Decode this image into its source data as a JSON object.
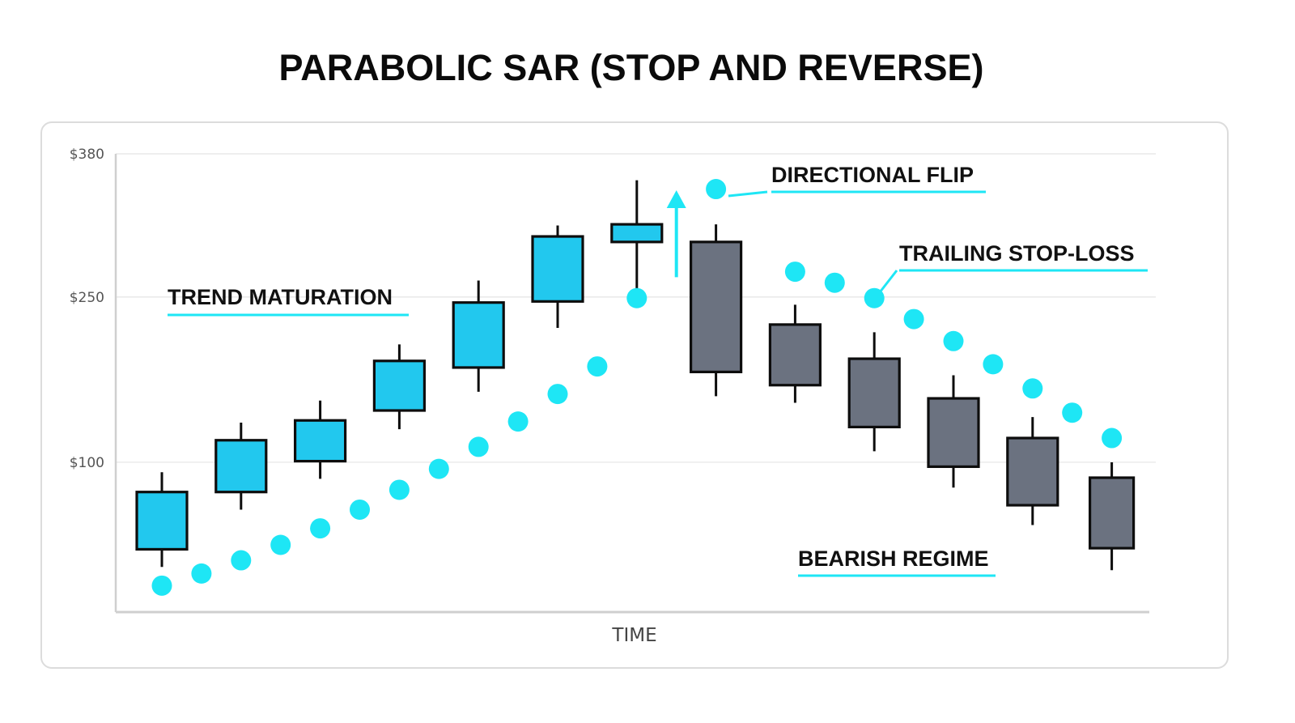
{
  "title": "PARABOLIC SAR (STOP AND REVERSE)",
  "chart_data": {
    "type": "candlestick",
    "title": "PARABOLIC SAR (STOP AND REVERSE)",
    "xlabel": "TIME",
    "ylabel": "",
    "ylim": [
      -36,
      380
    ],
    "yticks": [
      {
        "value": 100,
        "label": "$100"
      },
      {
        "value": 250,
        "label": "$250"
      },
      {
        "value": 380,
        "label": "$380"
      }
    ],
    "grid": true,
    "candles": [
      {
        "open": 21,
        "close": 73,
        "high": 91,
        "low": 5,
        "trend": "up"
      },
      {
        "open": 73,
        "close": 120,
        "high": 136,
        "low": 57,
        "trend": "up"
      },
      {
        "open": 101,
        "close": 138,
        "high": 156,
        "low": 85,
        "trend": "up"
      },
      {
        "open": 147,
        "close": 192,
        "high": 207,
        "low": 130,
        "trend": "up"
      },
      {
        "open": 186,
        "close": 245,
        "high": 265,
        "low": 164,
        "trend": "up"
      },
      {
        "open": 246,
        "close": 305,
        "high": 315,
        "low": 222,
        "trend": "up"
      },
      {
        "open": 300,
        "close": 316,
        "high": 356,
        "low": 253,
        "trend": "up"
      },
      {
        "open": 300,
        "close": 182,
        "high": 316,
        "low": 160,
        "trend": "down"
      },
      {
        "open": 225,
        "close": 170,
        "high": 243,
        "low": 154,
        "trend": "down"
      },
      {
        "open": 194,
        "close": 132,
        "high": 218,
        "low": 110,
        "trend": "down"
      },
      {
        "open": 158,
        "close": 96,
        "high": 179,
        "low": 77,
        "trend": "down"
      },
      {
        "open": 122,
        "close": 61,
        "high": 141,
        "low": 43,
        "trend": "down"
      },
      {
        "open": 86,
        "close": 22,
        "high": 100,
        "low": 2,
        "trend": "down"
      }
    ],
    "sar": [
      {
        "x": 0,
        "y": -12
      },
      {
        "x": 0.5,
        "y": -1
      },
      {
        "x": 1,
        "y": 11
      },
      {
        "x": 1.5,
        "y": 25
      },
      {
        "x": 2,
        "y": 40
      },
      {
        "x": 2.5,
        "y": 57
      },
      {
        "x": 3,
        "y": 75
      },
      {
        "x": 3.5,
        "y": 94
      },
      {
        "x": 4,
        "y": 114
      },
      {
        "x": 4.5,
        "y": 137
      },
      {
        "x": 5,
        "y": 162
      },
      {
        "x": 5.5,
        "y": 187
      },
      {
        "x": 6,
        "y": 249
      },
      {
        "x": 7,
        "y": 348
      },
      {
        "x": 8,
        "y": 273
      },
      {
        "x": 8.5,
        "y": 263
      },
      {
        "x": 9,
        "y": 249
      },
      {
        "x": 9.5,
        "y": 230
      },
      {
        "x": 10,
        "y": 210
      },
      {
        "x": 10.5,
        "y": 189
      },
      {
        "x": 11,
        "y": 167
      },
      {
        "x": 11.5,
        "y": 145
      },
      {
        "x": 12,
        "y": 122
      }
    ],
    "flip_arrow": {
      "x": 6.5,
      "y_from": 268,
      "y_to": 344
    },
    "annotations": [
      {
        "text": "TREND MATURATION"
      },
      {
        "text": "DIRECTIONAL FLIP"
      },
      {
        "text": "TRAILING STOP-LOSS"
      },
      {
        "text": "BEARISH REGIME"
      }
    ],
    "colors": {
      "bull": "#22c8ee",
      "bear": "#6b7280",
      "sar": "#1ee6f5",
      "outline": "#0d0d0d",
      "underline": "#1ee6f5"
    }
  }
}
